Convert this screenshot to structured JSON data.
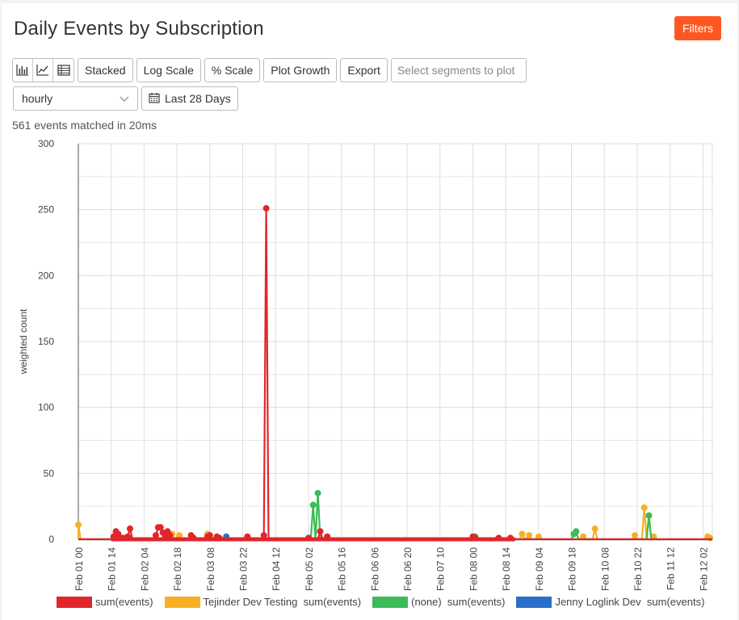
{
  "header": {
    "title": "Daily Events by Subscription",
    "filters_label": "Filters"
  },
  "toolbar": {
    "icons": [
      "bar-chart-icon",
      "line-chart-icon",
      "table-icon"
    ],
    "stacked_label": "Stacked",
    "log_scale_label": "Log Scale",
    "pct_scale_label": "% Scale",
    "plot_growth_label": "Plot Growth",
    "export_label": "Export",
    "segments_placeholder": "Select segments to plot"
  },
  "controls": {
    "granularity": "hourly",
    "date_range": "Last 28 Days"
  },
  "status": {
    "matched_text": "561 events matched in 20ms"
  },
  "colors": {
    "accent": "#ff5722",
    "sum_events": "#e0262b",
    "tejinder": "#f6b026",
    "none": "#3dbb58",
    "jenny": "#2a6fc8"
  },
  "chart_data": {
    "type": "line",
    "title": "",
    "ylabel": "weighted count",
    "xlabel": "",
    "ylim": [
      0,
      300
    ],
    "yticks": [
      0,
      50,
      100,
      150,
      200,
      250,
      300
    ],
    "x_range": [
      "Feb 01 00",
      "Feb 12 06"
    ],
    "xtick_labels": [
      "Feb 01 00",
      "Feb 01 14",
      "Feb 02 04",
      "Feb 02 18",
      "Feb 03 08",
      "Feb 03 22",
      "Feb 04 12",
      "Feb 05 02",
      "Feb 05 16",
      "Feb 06 06",
      "Feb 06 20",
      "Feb 07 10",
      "Feb 08 00",
      "Feb 08 14",
      "Feb 09 04",
      "Feb 09 18",
      "Feb 10 08",
      "Feb 10 22",
      "Feb 11 12",
      "Feb 12 02"
    ],
    "grid": true,
    "legend_position": "bottom",
    "series": [
      {
        "name": "Tejinder Dev Testing  sum(events)",
        "color": "#f6b026",
        "points": [
          [
            "Feb 01 00",
            11
          ],
          [
            "Feb 01 01",
            0
          ],
          [
            "Feb 01 16",
            0
          ],
          [
            "Feb 01 17",
            2
          ],
          [
            "Feb 01 18",
            0
          ],
          [
            "Feb 02 15",
            0
          ],
          [
            "Feb 02 16",
            4
          ],
          [
            "Feb 02 17",
            0
          ],
          [
            "Feb 02 19",
            3
          ],
          [
            "Feb 02 20",
            0
          ],
          [
            "Feb 03 06",
            0
          ],
          [
            "Feb 03 07",
            4
          ],
          [
            "Feb 03 08",
            1
          ],
          [
            "Feb 03 09",
            0
          ],
          [
            "Feb 08 20",
            0
          ],
          [
            "Feb 08 21",
            4
          ],
          [
            "Feb 08 22",
            0
          ],
          [
            "Feb 09 00",
            3
          ],
          [
            "Feb 09 01",
            0
          ],
          [
            "Feb 09 03",
            0
          ],
          [
            "Feb 09 04",
            2
          ],
          [
            "Feb 09 05",
            0
          ],
          [
            "Feb 09 22",
            0
          ],
          [
            "Feb 09 23",
            2
          ],
          [
            "Feb 10 00",
            0
          ],
          [
            "Feb 10 03",
            0
          ],
          [
            "Feb 10 04",
            8
          ],
          [
            "Feb 10 05",
            0
          ],
          [
            "Feb 10 20",
            0
          ],
          [
            "Feb 10 21",
            3
          ],
          [
            "Feb 10 22",
            0
          ],
          [
            "Feb 11 00",
            0
          ],
          [
            "Feb 11 01",
            24
          ],
          [
            "Feb 11 02",
            0
          ],
          [
            "Feb 11 03",
            18
          ],
          [
            "Feb 11 04",
            0
          ],
          [
            "Feb 11 05",
            2
          ],
          [
            "Feb 11 06",
            0
          ],
          [
            "Feb 12 03",
            0
          ],
          [
            "Feb 12 04",
            2
          ],
          [
            "Feb 12 05",
            1
          ]
        ]
      },
      {
        "name": "(none)  sum(events)",
        "color": "#3dbb58",
        "points": [
          [
            "Feb 05 03",
            0
          ],
          [
            "Feb 05 04",
            26
          ],
          [
            "Feb 05 05",
            0
          ],
          [
            "Feb 05 06",
            35
          ],
          [
            "Feb 05 07",
            0
          ],
          [
            "Feb 08 00",
            0
          ],
          [
            "Feb 08 01",
            2
          ],
          [
            "Feb 08 02",
            0
          ],
          [
            "Feb 09 18",
            0
          ],
          [
            "Feb 09 19",
            4
          ],
          [
            "Feb 09 20",
            6
          ],
          [
            "Feb 09 21",
            0
          ],
          [
            "Feb 11 02",
            0
          ],
          [
            "Feb 11 03",
            18
          ],
          [
            "Feb 11 04",
            0
          ]
        ]
      },
      {
        "name": "Jenny Loglink Dev  sum(events)",
        "color": "#2a6fc8",
        "points": [
          [
            "Feb 03 14",
            0
          ],
          [
            "Feb 03 15",
            2
          ],
          [
            "Feb 03 16",
            0
          ]
        ]
      },
      {
        "name": "sum(events)",
        "color": "#e0262b",
        "points": [
          [
            "Feb 01 00",
            0
          ],
          [
            "Feb 01 14",
            0
          ],
          [
            "Feb 01 15",
            2
          ],
          [
            "Feb 01 16",
            6
          ],
          [
            "Feb 01 17",
            4
          ],
          [
            "Feb 01 18",
            0
          ],
          [
            "Feb 01 19",
            1
          ],
          [
            "Feb 01 20",
            0
          ],
          [
            "Feb 01 21",
            2
          ],
          [
            "Feb 01 22",
            8
          ],
          [
            "Feb 01 23",
            0
          ],
          [
            "Feb 02 08",
            0
          ],
          [
            "Feb 02 09",
            3
          ],
          [
            "Feb 02 10",
            9
          ],
          [
            "Feb 02 11",
            9
          ],
          [
            "Feb 02 12",
            5
          ],
          [
            "Feb 02 13",
            2
          ],
          [
            "Feb 02 14",
            6
          ],
          [
            "Feb 02 15",
            3
          ],
          [
            "Feb 02 16",
            0
          ],
          [
            "Feb 02 23",
            0
          ],
          [
            "Feb 03 00",
            3
          ],
          [
            "Feb 03 01",
            1
          ],
          [
            "Feb 03 02",
            0
          ],
          [
            "Feb 03 06",
            0
          ],
          [
            "Feb 03 07",
            2
          ],
          [
            "Feb 03 08",
            3
          ],
          [
            "Feb 03 09",
            0
          ],
          [
            "Feb 03 11",
            2
          ],
          [
            "Feb 03 12",
            1
          ],
          [
            "Feb 03 13",
            0
          ],
          [
            "Feb 03 23",
            0
          ],
          [
            "Feb 04 00",
            2
          ],
          [
            "Feb 04 01",
            0
          ],
          [
            "Feb 04 06",
            0
          ],
          [
            "Feb 04 07",
            3
          ],
          [
            "Feb 04 08",
            251
          ],
          [
            "Feb 04 09",
            0
          ],
          [
            "Feb 05 01",
            0
          ],
          [
            "Feb 05 02",
            1
          ],
          [
            "Feb 05 03",
            0
          ],
          [
            "Feb 05 06",
            0
          ],
          [
            "Feb 05 07",
            6
          ],
          [
            "Feb 05 08",
            0
          ],
          [
            "Feb 05 10",
            2
          ],
          [
            "Feb 05 11",
            0
          ],
          [
            "Feb 07 23",
            0
          ],
          [
            "Feb 08 00",
            2
          ],
          [
            "Feb 08 01",
            1
          ],
          [
            "Feb 08 02",
            0
          ],
          [
            "Feb 08 10",
            0
          ],
          [
            "Feb 08 11",
            1
          ],
          [
            "Feb 08 12",
            0
          ],
          [
            "Feb 08 15",
            0
          ],
          [
            "Feb 08 16",
            1
          ],
          [
            "Feb 08 17",
            0
          ]
        ]
      }
    ]
  },
  "legend": [
    {
      "label": "sum(events)",
      "color": "#e0262b"
    },
    {
      "label": "Tejinder Dev Testing  sum(events)",
      "color": "#f6b026"
    },
    {
      "label": "(none)  sum(events)",
      "color": "#3dbb58"
    },
    {
      "label": "Jenny Loglink Dev  sum(events)",
      "color": "#2a6fc8"
    }
  ]
}
